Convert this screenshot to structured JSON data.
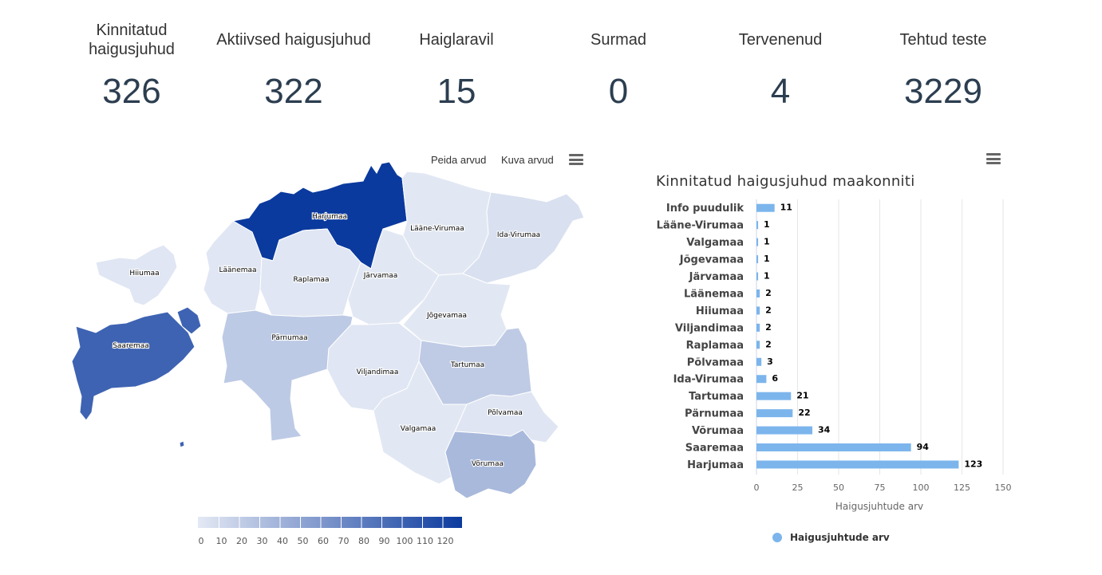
{
  "stats": [
    {
      "label": "Kinnitatud haigusjuhud",
      "value": "326"
    },
    {
      "label": "Aktiivsed haigusjuhud",
      "value": "322"
    },
    {
      "label": "Haiglaravil",
      "value": "15"
    },
    {
      "label": "Surmad",
      "value": "0"
    },
    {
      "label": "Tervenenud",
      "value": "4"
    },
    {
      "label": "Tehtud teste",
      "value": "3229"
    }
  ],
  "map": {
    "hide_label": "Peida arvud",
    "show_label": "Kuva arvud",
    "colors": {
      "min": "#e4e9f4",
      "max": "#0b3a9e",
      "border": "#ffffff"
    },
    "legend_ticks": [
      "0",
      "10",
      "20",
      "30",
      "40",
      "50",
      "60",
      "70",
      "80",
      "90",
      "100",
      "110",
      "120"
    ],
    "regions": [
      {
        "name": "Harjumaa",
        "value": 123
      },
      {
        "name": "Lääne-Virumaa",
        "value": 1
      },
      {
        "name": "Ida-Virumaa",
        "value": 6
      },
      {
        "name": "Hiiumaa",
        "value": 2
      },
      {
        "name": "Läänemaa",
        "value": 2
      },
      {
        "name": "Raplamaa",
        "value": 2
      },
      {
        "name": "Järvamaa",
        "value": 1
      },
      {
        "name": "Jõgevamaa",
        "value": 1
      },
      {
        "name": "Saaremaa",
        "value": 94
      },
      {
        "name": "Pärnumaa",
        "value": 22
      },
      {
        "name": "Viljandimaa",
        "value": 2
      },
      {
        "name": "Tartumaa",
        "value": 21
      },
      {
        "name": "Valgamaa",
        "value": 1
      },
      {
        "name": "Põlvamaa",
        "value": 3
      },
      {
        "name": "Võrumaa",
        "value": 34
      }
    ]
  },
  "chart_data": {
    "type": "bar",
    "orientation": "horizontal",
    "title": "Kinnitatud haigusjuhud maakonniti",
    "categories": [
      "Info puudulik",
      "Lääne-Virumaa",
      "Valgamaa",
      "Jõgevamaa",
      "Järvamaa",
      "Läänemaa",
      "Hiiumaa",
      "Viljandimaa",
      "Raplamaa",
      "Põlvamaa",
      "Ida-Virumaa",
      "Tartumaa",
      "Pärnumaa",
      "Võrumaa",
      "Saaremaa",
      "Harjumaa"
    ],
    "series": [
      {
        "name": "Haigusjuhtude arv",
        "values": [
          11,
          1,
          1,
          1,
          1,
          2,
          2,
          2,
          2,
          3,
          6,
          21,
          22,
          34,
          94,
          123
        ],
        "color": "#7cb5ec"
      }
    ],
    "xlabel": "Haigusjuhtude arv",
    "xlim": [
      0,
      150
    ],
    "xticks": [
      0,
      25,
      50,
      75,
      100,
      125,
      150
    ],
    "grid": true,
    "legend": "bottom"
  }
}
